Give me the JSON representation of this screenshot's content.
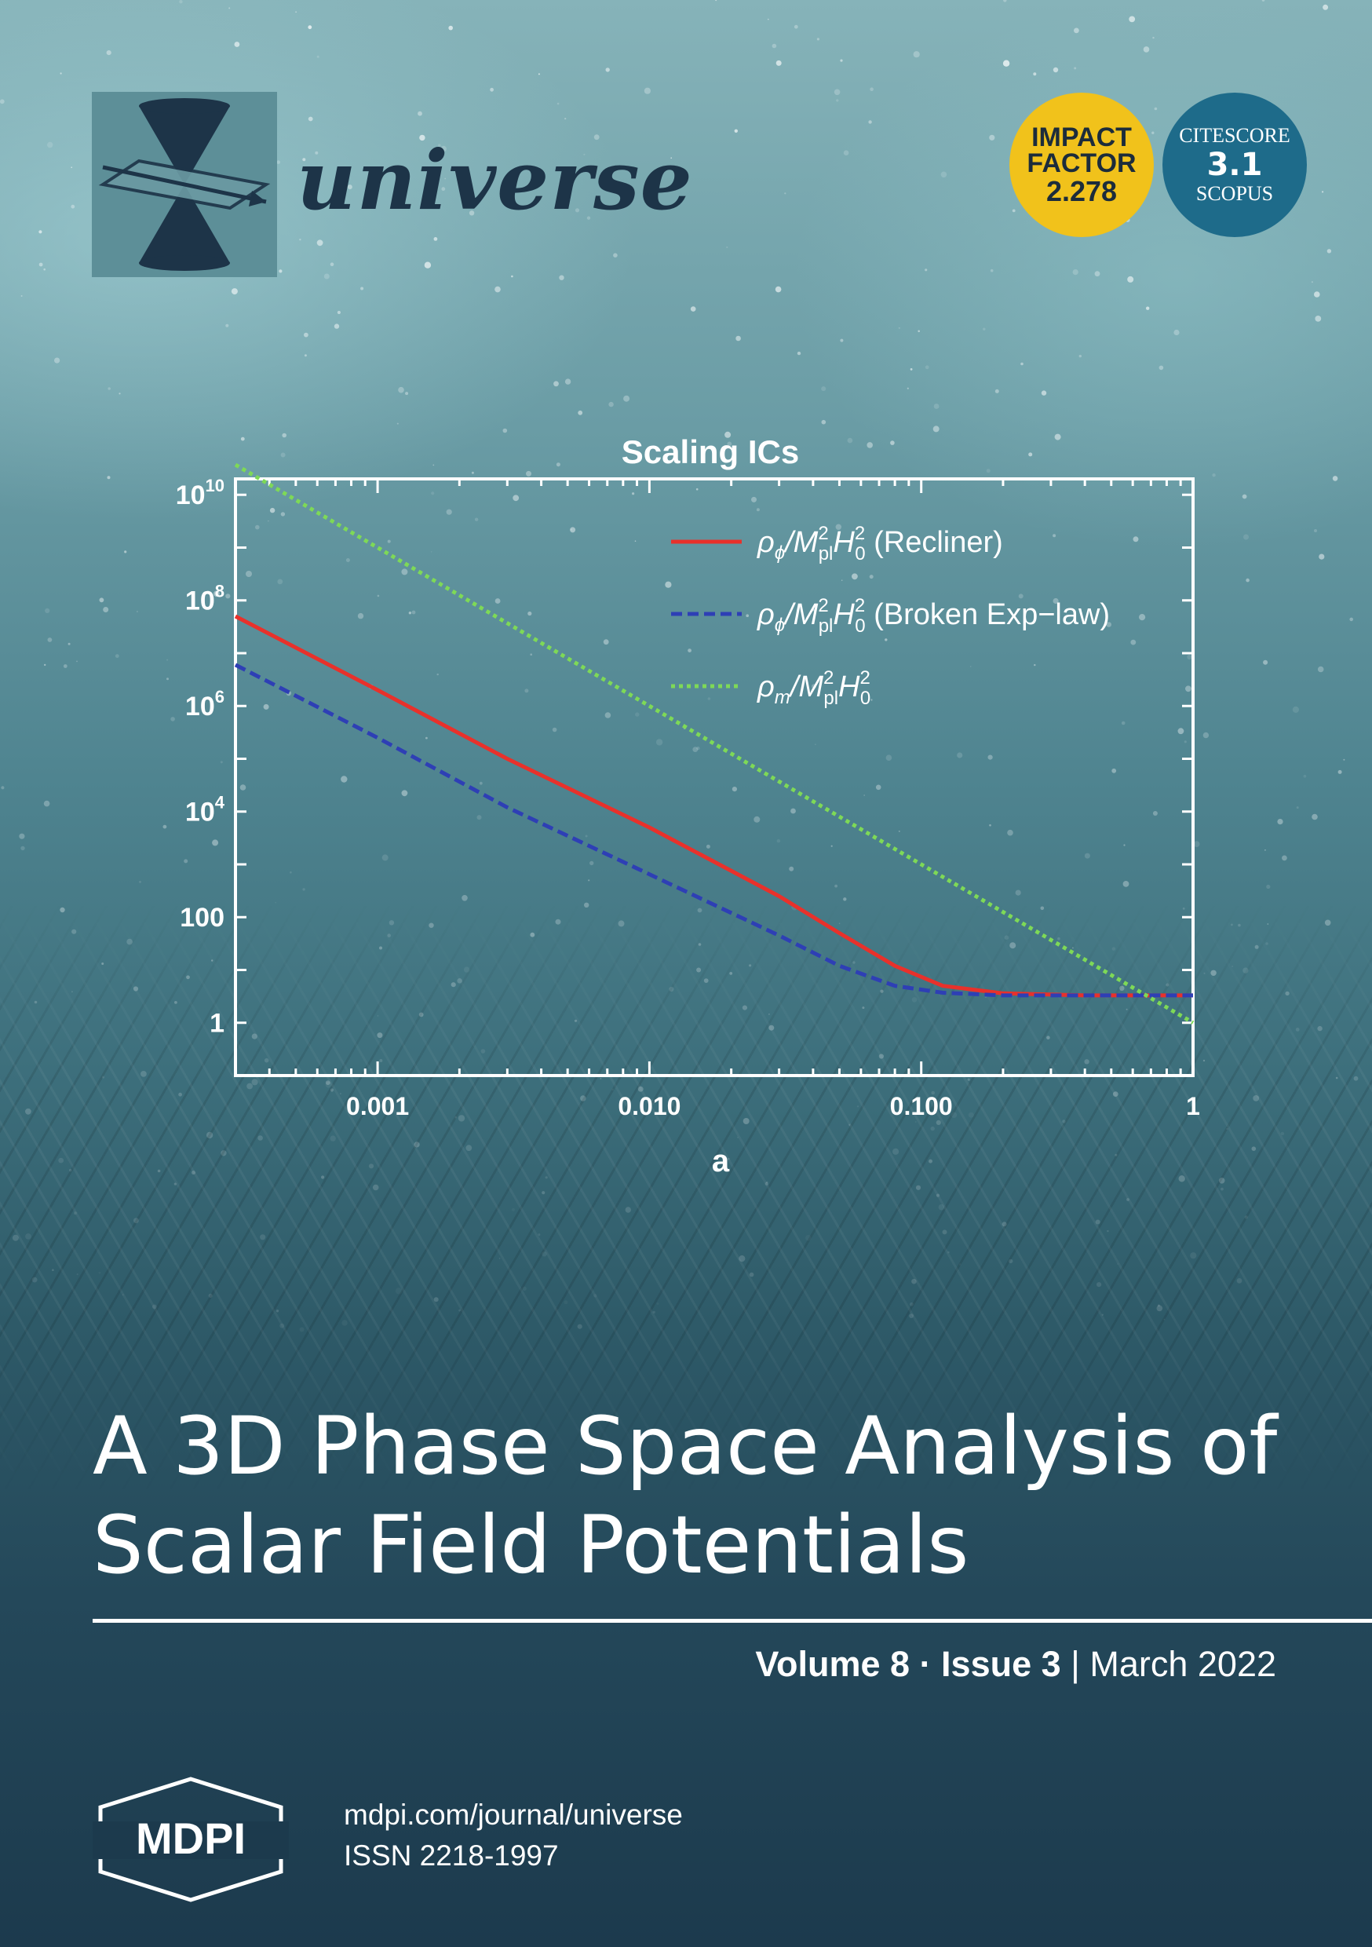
{
  "journal": {
    "name": "universe",
    "logo_icon": "double-cone-icon"
  },
  "badges": {
    "impact_factor": {
      "line1": "IMPACT",
      "line2": "FACTOR",
      "value": "2.278",
      "color": "#f1c21b"
    },
    "citescore": {
      "line1": "CITESCORE",
      "value": "3.1",
      "line3": "SCOPUS",
      "color": "#1e6b8a"
    }
  },
  "chart_data": {
    "type": "line",
    "title": "Scaling ICs",
    "xlabel": "a",
    "ylabel": "",
    "x_scale": "log",
    "y_scale": "log",
    "xlim": [
      0.0003,
      1
    ],
    "ylim": [
      0.1,
      20000000000.0
    ],
    "x_ticks": [
      {
        "value": 0.001,
        "label": "0.001"
      },
      {
        "value": 0.01,
        "label": "0.010"
      },
      {
        "value": 0.1,
        "label": "0.100"
      },
      {
        "value": 1,
        "label": "1"
      }
    ],
    "y_ticks": [
      {
        "value": 1,
        "base": "1",
        "exp": ""
      },
      {
        "value": 100,
        "base": "100",
        "exp": ""
      },
      {
        "value": 10000,
        "base": "10",
        "exp": "4"
      },
      {
        "value": 1000000,
        "base": "10",
        "exp": "6"
      },
      {
        "value": 100000000,
        "base": "10",
        "exp": "8"
      },
      {
        "value": 10000000000,
        "base": "10",
        "exp": "10"
      }
    ],
    "grid": false,
    "legend_position": "top-right",
    "series": [
      {
        "name": "ρφ/M²plH²0 (Recliner)",
        "legend": {
          "rho_sub": "ϕ",
          "suffix": " (Recliner)"
        },
        "color": "#e8312b",
        "dash": "solid",
        "points": [
          [
            0.0003,
            50000000.0
          ],
          [
            0.001,
            2000000.0
          ],
          [
            0.003,
            100000.0
          ],
          [
            0.01,
            5000
          ],
          [
            0.03,
            250
          ],
          [
            0.05,
            50
          ],
          [
            0.08,
            12
          ],
          [
            0.12,
            5
          ],
          [
            0.2,
            3.6
          ],
          [
            0.4,
            3.3
          ],
          [
            1,
            3.3
          ]
        ]
      },
      {
        "name": "ρφ/M²plH²0 (Broken Exp−law)",
        "legend": {
          "rho_sub": "ϕ",
          "suffix": " (Broken Exp−law)"
        },
        "color": "#2e3fb5",
        "dash": "dashed",
        "points": [
          [
            0.0003,
            6000000.0
          ],
          [
            0.001,
            250000.0
          ],
          [
            0.003,
            12000.0
          ],
          [
            0.01,
            650
          ],
          [
            0.03,
            45
          ],
          [
            0.05,
            12
          ],
          [
            0.08,
            5
          ],
          [
            0.12,
            3.7
          ],
          [
            0.2,
            3.3
          ],
          [
            0.4,
            3.3
          ],
          [
            1,
            3.3
          ]
        ]
      },
      {
        "name": "ρm/M²plH²0",
        "legend": {
          "rho_sub": "m",
          "suffix": ""
        },
        "color": "#7ed957",
        "dash": "dotted",
        "points": [
          [
            0.0003,
            37000000000.0
          ],
          [
            1,
            1
          ]
        ]
      }
    ]
  },
  "article": {
    "title_line1": "A 3D Phase Space Analysis of",
    "title_line2": "Scalar Field Potentials"
  },
  "issue": {
    "volume": "Volume 8",
    "separator_dot": " · ",
    "issue": "Issue 3",
    "separator_bar": " | ",
    "date": "March 2022"
  },
  "footer": {
    "publisher": "MDPI",
    "url": "mdpi.com/journal/universe",
    "issn": "ISSN 2218-1997"
  }
}
